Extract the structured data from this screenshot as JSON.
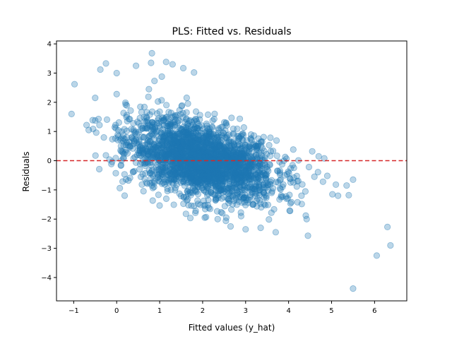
{
  "chart_data": {
    "type": "scatter",
    "title": "PLS: Fitted vs. Residuals",
    "xlabel": "Fitted values (y_hat)",
    "ylabel": "Residuals",
    "xlim": [
      -1.4,
      6.75
    ],
    "ylim": [
      -4.8,
      4.1
    ],
    "xticks": [
      -1,
      0,
      1,
      2,
      3,
      4,
      5,
      6
    ],
    "yticks": [
      -4,
      -3,
      -2,
      -1,
      0,
      1,
      2,
      3,
      4
    ],
    "grid": false,
    "legend": "none",
    "reference_line": {
      "y": 0,
      "style": "dashed",
      "color": "#d62728"
    },
    "point_color": "#1f77b4",
    "point_alpha": 0.3,
    "series": [
      {
        "outliers": [
          [
            -1.05,
            1.6
          ],
          [
            -0.98,
            2.62
          ],
          [
            -0.38,
            3.12
          ],
          [
            -0.25,
            3.33
          ],
          [
            0.0,
            3.0
          ],
          [
            -0.5,
            2.15
          ],
          [
            0.0,
            2.28
          ],
          [
            0.45,
            3.25
          ],
          [
            0.82,
            3.68
          ],
          [
            0.8,
            3.35
          ],
          [
            1.15,
            3.38
          ],
          [
            1.3,
            3.3
          ],
          [
            1.55,
            3.17
          ],
          [
            0.88,
            2.73
          ],
          [
            1.05,
            2.88
          ],
          [
            0.75,
            2.45
          ],
          [
            1.8,
            3.02
          ],
          [
            -0.7,
            1.22
          ],
          [
            -0.4,
            1.22
          ],
          [
            -0.65,
            1.05
          ],
          [
            4.55,
            0.32
          ],
          [
            4.7,
            0.15
          ],
          [
            4.83,
            0.08
          ],
          [
            4.6,
            -0.55
          ],
          [
            4.8,
            -0.72
          ],
          [
            4.9,
            -0.52
          ],
          [
            5.1,
            -0.82
          ],
          [
            5.15,
            -1.2
          ],
          [
            5.35,
            -0.85
          ],
          [
            5.5,
            -0.65
          ],
          [
            5.4,
            -1.18
          ],
          [
            5.02,
            -1.15
          ],
          [
            4.4,
            -1.88
          ],
          [
            4.42,
            -2.0
          ],
          [
            4.45,
            -2.57
          ],
          [
            3.35,
            -2.3
          ],
          [
            3.7,
            -2.45
          ],
          [
            3.0,
            -2.35
          ],
          [
            2.65,
            -2.25
          ],
          [
            6.3,
            -2.27
          ],
          [
            6.37,
            -2.9
          ],
          [
            6.05,
            -3.25
          ],
          [
            5.5,
            -4.38
          ],
          [
            4.2,
            -0.7
          ],
          [
            4.3,
            -1.2
          ],
          [
            3.95,
            -1.3
          ],
          [
            2.05,
            -1.95
          ],
          [
            2.35,
            -2.0
          ],
          [
            2.55,
            -1.95
          ],
          [
            1.8,
            -1.55
          ]
        ],
        "cluster": {
          "center_line": {
            "slope": -0.33,
            "intercept": 0.66
          },
          "x_mean": 2.0,
          "x_sd": 0.85,
          "x_range": [
            -0.6,
            4.8
          ],
          "residual_sd": 0.62,
          "residual_range": [
            -2.1,
            2.9
          ]
        }
      }
    ]
  }
}
